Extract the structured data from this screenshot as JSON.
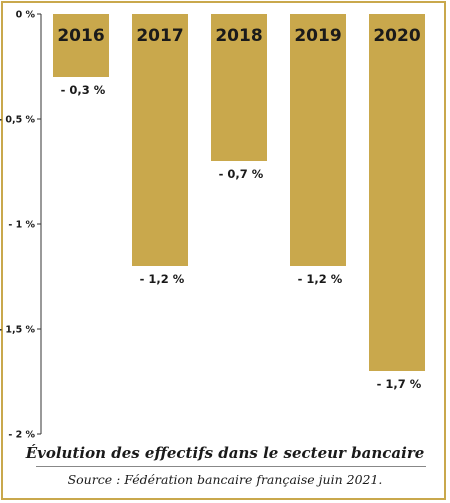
{
  "colors": {
    "bar": "#c9a84c",
    "frame": "#c9a84c",
    "axis": "#333333",
    "text": "#1a1a1a"
  },
  "title": "Évolution des effectifs dans le secteur bancaire",
  "source": "Source : Fédération bancaire française juin 2021.",
  "chart_data": {
    "type": "bar",
    "categories": [
      "2016",
      "2017",
      "2018",
      "2019",
      "2020"
    ],
    "values": [
      -0.3,
      -1.2,
      -0.7,
      -1.2,
      -1.7
    ],
    "data_labels": [
      "- 0,3 %",
      "- 1,2 %",
      "- 0,7 %",
      "- 1,2 %",
      "- 1,7 %"
    ],
    "yticks": [
      0,
      -0.5,
      -1,
      -1.5,
      -2
    ],
    "ytick_labels": [
      "0 %",
      "- 0,5 %",
      "- 1 %",
      "- 1,5 %",
      "- 2 %"
    ],
    "ylim": [
      -2,
      0
    ],
    "grid": false,
    "category_labels_position": "inside-top-of-bars"
  }
}
